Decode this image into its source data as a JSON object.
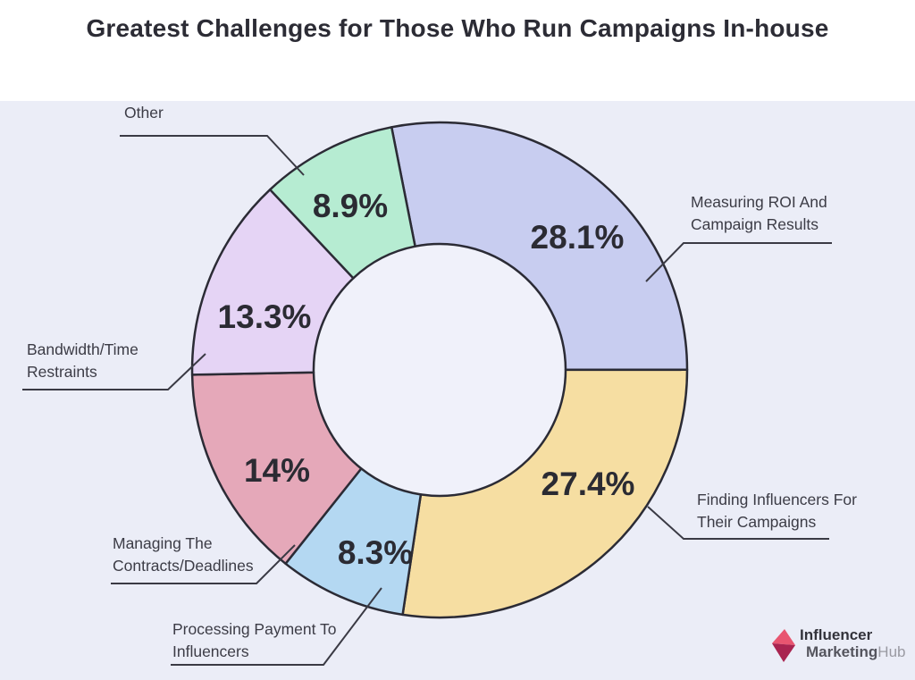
{
  "page": {
    "title": "Greatest Challenges for Those Who Run Campaigns In-house"
  },
  "chart_data": {
    "type": "pie",
    "subtype": "donut",
    "title": "Greatest Challenges for Those Who Run Campaigns In-house",
    "unit": "%",
    "direction": "clockwise",
    "start_angle_deg": -11.2,
    "inner_radius_ratio": 0.51,
    "legend_position": "callout-labels",
    "background_color": "#ebedf7",
    "outline_color": "#2b2b35",
    "segments": [
      {
        "label": "Measuring ROI And Campaign Results",
        "label_lines": [
          "Measuring ROI And",
          "Campaign Results"
        ],
        "value": 28.1,
        "display": "28.1%",
        "color": "#c8cdf0"
      },
      {
        "label": "Finding Influencers For Their Campaigns",
        "label_lines": [
          "Finding Influencers For",
          "Their Campaigns"
        ],
        "value": 27.4,
        "display": "27.4%",
        "color": "#f6dea2"
      },
      {
        "label": "Processing Payment To Influencers",
        "label_lines": [
          "Processing Payment To",
          "Influencers"
        ],
        "value": 8.3,
        "display": "8.3%",
        "color": "#b4d8f2"
      },
      {
        "label": "Managing The Contracts/Deadlines",
        "label_lines": [
          "Managing The",
          "Contracts/Deadlines"
        ],
        "value": 14,
        "display": "14%",
        "color": "#e5a8b9"
      },
      {
        "label": "Bandwidth/Time Restraints",
        "label_lines": [
          "Bandwidth/Time",
          "Restraints"
        ],
        "value": 13.3,
        "display": "13.3%",
        "color": "#e5d4f5"
      },
      {
        "label": "Other",
        "label_lines": [
          "Other"
        ],
        "value": 8.9,
        "display": "8.9%",
        "color": "#b6ecd2"
      }
    ]
  },
  "brand": {
    "line1": "Influencer",
    "line2_part1": "Marketing",
    "line2_part2": "Hub",
    "icon_color_light": "#e85570",
    "icon_color_dark": "#a92450"
  }
}
